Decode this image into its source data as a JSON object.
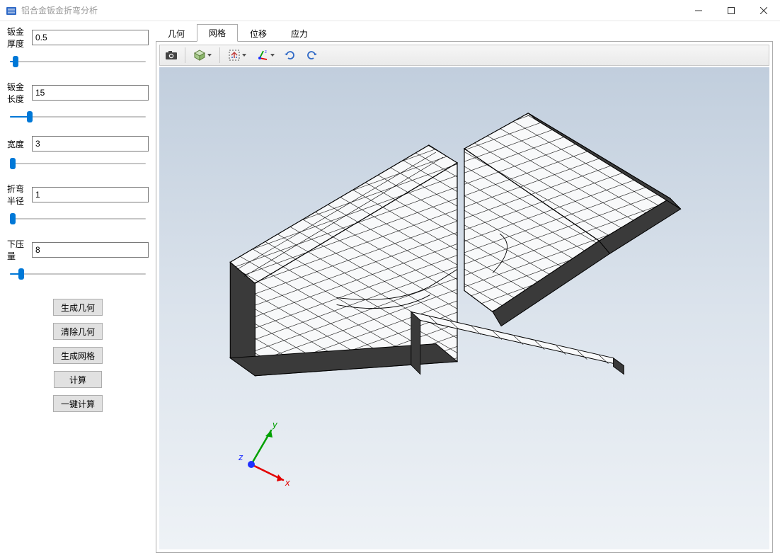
{
  "window": {
    "title": "铝合金钣金折弯分析",
    "icon_color": "#2f69c6"
  },
  "parameters": [
    {
      "label": "钣金厚度",
      "value": "0.5",
      "slider_percent": 4
    },
    {
      "label": "钣金长度",
      "value": "15",
      "slider_percent": 14
    },
    {
      "label": "宽度",
      "value": "3",
      "slider_percent": 2
    },
    {
      "label": "折弯半径",
      "value": "1",
      "slider_percent": 2
    },
    {
      "label": "下压量",
      "value": "8",
      "slider_percent": 8
    }
  ],
  "buttons": {
    "gen_geom": "生成几何",
    "clear_geom": "清除几何",
    "gen_mesh": "生成网格",
    "compute": "计算",
    "one_click": "一键计算"
  },
  "tabs": [
    {
      "id": "geometry",
      "label": "几何",
      "active": false
    },
    {
      "id": "mesh",
      "label": "网格",
      "active": true
    },
    {
      "id": "displacement",
      "label": "位移",
      "active": false
    },
    {
      "id": "stress",
      "label": "应力",
      "active": false
    }
  ],
  "toolbar": {
    "items": [
      {
        "name": "screenshot-icon",
        "kind": "camera"
      },
      {
        "name": "divider"
      },
      {
        "name": "view-cube-icon",
        "kind": "cube",
        "dropdown": true
      },
      {
        "name": "divider"
      },
      {
        "name": "zoom-extents-icon",
        "kind": "extents",
        "dropdown": true
      },
      {
        "name": "axis-triad-icon",
        "kind": "triad",
        "dropdown": true
      },
      {
        "name": "rotate-cw-icon",
        "kind": "rotate-cw"
      },
      {
        "name": "rotate-ccw-icon",
        "kind": "rotate-ccw"
      }
    ]
  },
  "viewport": {
    "bg_top": "#c1cedd",
    "bg_mid": "#dbe3ec",
    "bg_bot": "#eef2f6",
    "mesh_fill": "#f8f9fa",
    "mesh_dark": "#5a5a5a",
    "mesh_line": "#000000",
    "triad": {
      "x_color": "#e30000",
      "y_color": "#00a000",
      "z_color": "#2030ff",
      "x": "x",
      "y": "y",
      "z": "z"
    }
  }
}
